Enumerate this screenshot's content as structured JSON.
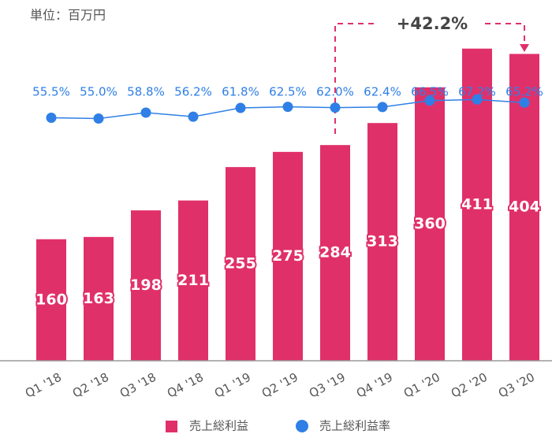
{
  "chart_data": {
    "type": "bar",
    "subtitle": "単位：百万円",
    "annotation": "+42.2%",
    "categories": [
      "Q1 '18",
      "Q2 '18",
      "Q3 '18",
      "Q4 '18",
      "Q1 '19",
      "Q2 '19",
      "Q3 '19",
      "Q4 '19",
      "Q1 '20",
      "Q2 '20",
      "Q3 '20"
    ],
    "series": [
      {
        "name": "売上総利益",
        "color": "#e0306a",
        "values": [
          160,
          163,
          198,
          211,
          255,
          275,
          284,
          313,
          360,
          411,
          404
        ]
      },
      {
        "name": "売上総利益率",
        "color": "#2f7fe6",
        "type": "line",
        "axis": "y2",
        "values": [
          55.5,
          55.0,
          58.8,
          56.2,
          61.8,
          62.5,
          62.0,
          62.4,
          66.5,
          67.2,
          65.2
        ],
        "value_labels": [
          "55.5%",
          "55.0%",
          "58.8%",
          "56.2%",
          "61.8%",
          "62.5%",
          "62.0%",
          "62.4%",
          "66.5%",
          "67.2%",
          "65.2%"
        ]
      }
    ],
    "ylim": [
      0,
      475
    ],
    "y2lim": [
      30,
      80
    ],
    "legend": "bottom"
  }
}
